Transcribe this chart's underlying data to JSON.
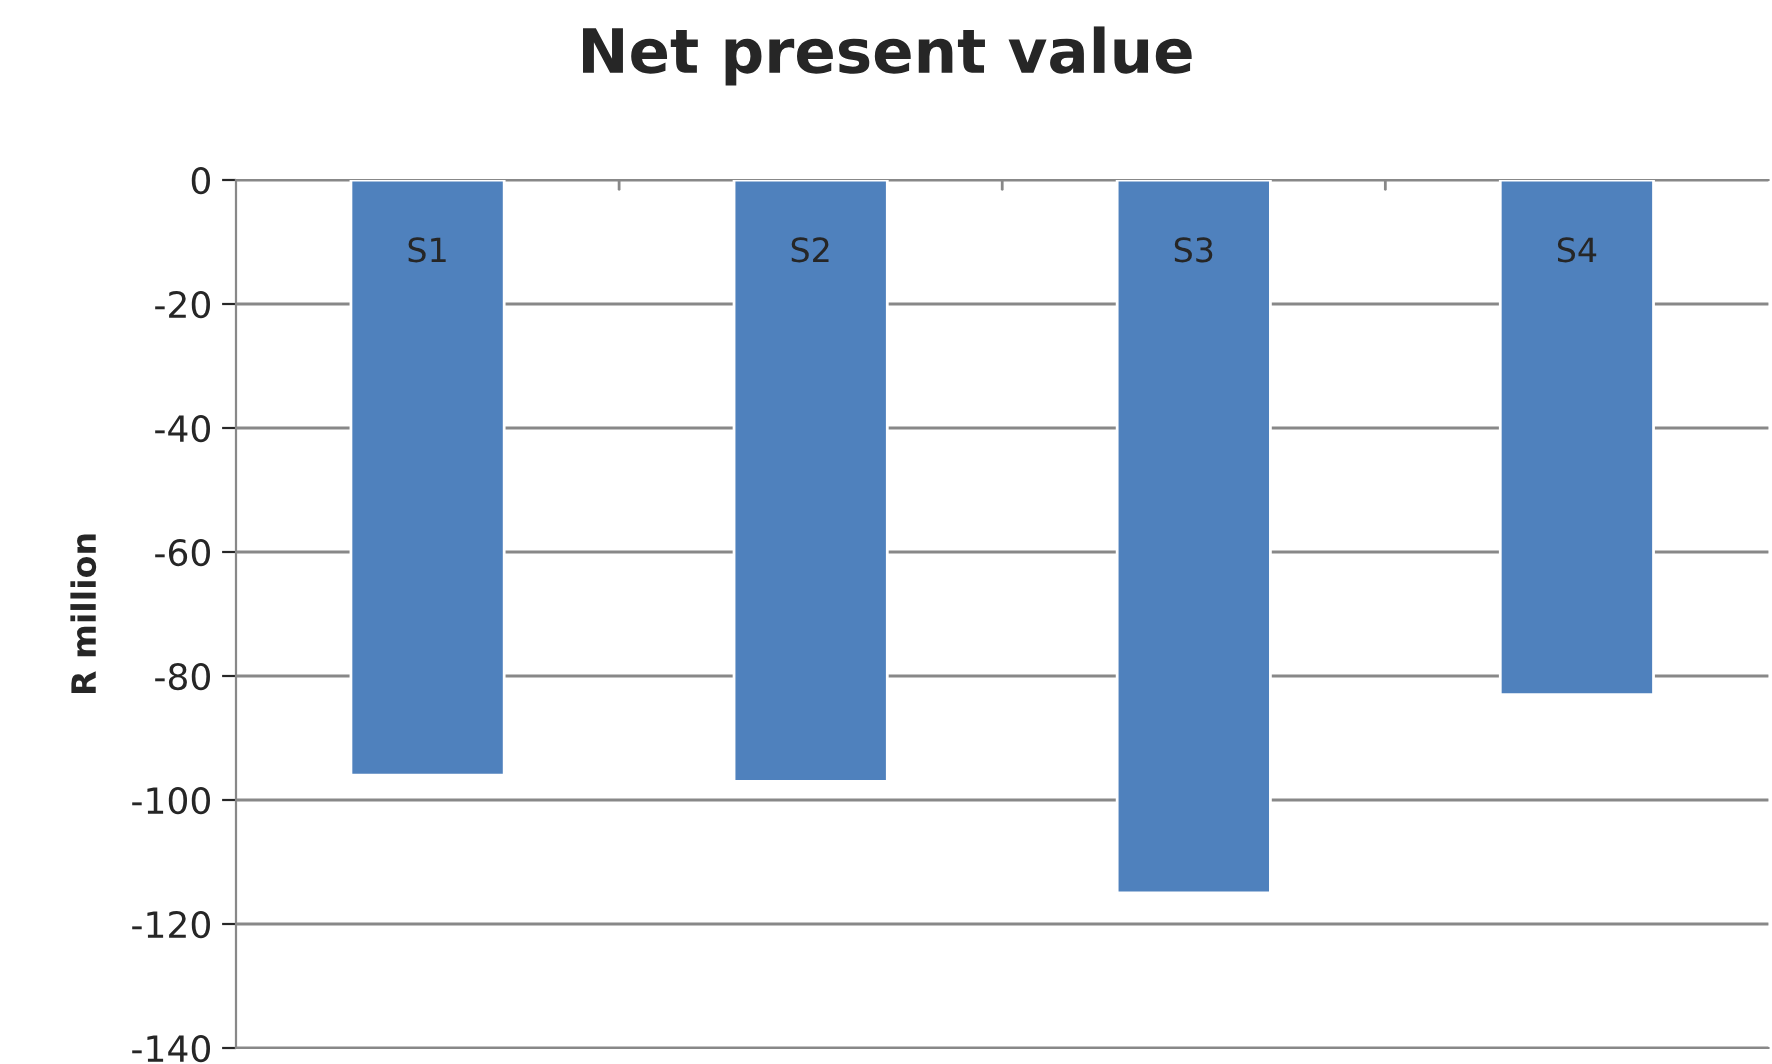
{
  "chart_data": {
    "type": "bar",
    "title": "Net present value",
    "ylabel": "R million",
    "categories": [
      "S1",
      "S2",
      "S3",
      "S4"
    ],
    "values": [
      -96,
      -97,
      -115,
      -83
    ],
    "color": "#4f81bd",
    "ylim": [
      -140,
      0
    ],
    "yticks": [
      -140,
      -120,
      -100,
      -80,
      -60,
      -40,
      -20,
      0
    ],
    "grid": "y",
    "legend": false
  }
}
